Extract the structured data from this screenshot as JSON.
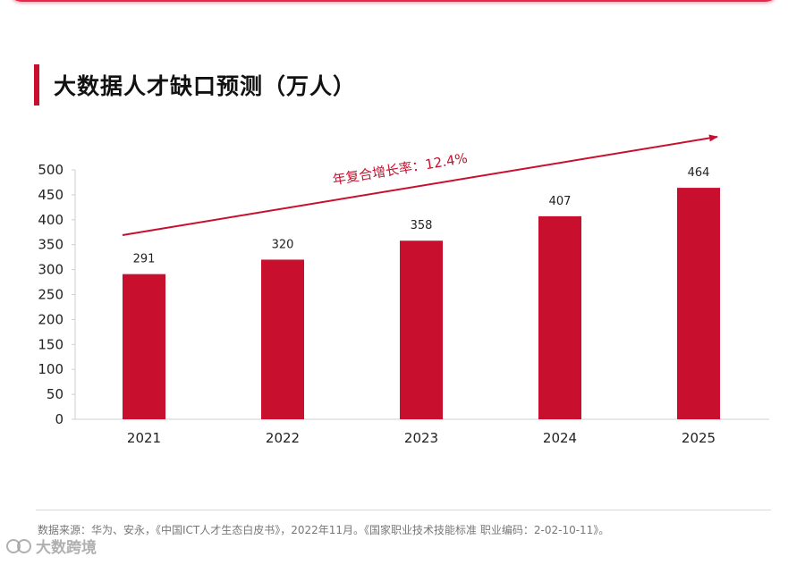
{
  "title": "大数据人才缺口预测（万人）",
  "chart_data": {
    "type": "bar",
    "title": "大数据人才缺口预测（万人）",
    "categories": [
      "2021",
      "2022",
      "2023",
      "2024",
      "2025"
    ],
    "values": [
      291,
      320,
      358,
      407,
      464
    ],
    "y_ticks": [
      0,
      50,
      100,
      150,
      200,
      250,
      300,
      350,
      400,
      450,
      500
    ],
    "ylim": [
      0,
      500
    ],
    "xlabel": "",
    "ylabel": "",
    "grid": false,
    "annotation": "年复合增长率：12.4%",
    "bar_color": "#c8102e"
  },
  "footer": {
    "source": "数据来源：华为、安永，《中国ICT人才生态白皮书》，2022年11月。《国家职业技术技能标准 职业编码：2-02-10-11》。"
  },
  "watermark": {
    "text": "大数跨境"
  },
  "colors": {
    "accent": "#c8102e",
    "top_bar": "#e8284a"
  }
}
